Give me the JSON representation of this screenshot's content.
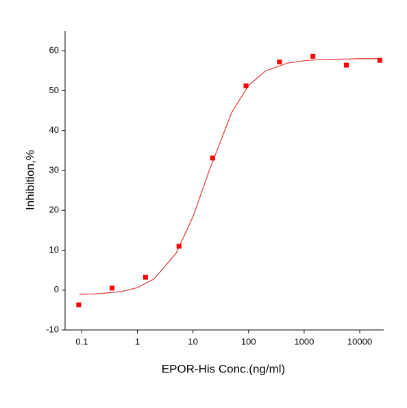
{
  "chart_data": {
    "type": "scatter",
    "x_label": "EPOR-His Conc.(ng/ml)",
    "y_label": "Inhibition,%",
    "xscale": "log",
    "xlim": [
      0.05,
      27000
    ],
    "ylim": [
      -10,
      65
    ],
    "xticks": [
      0.1,
      1,
      10,
      100,
      1000,
      10000
    ],
    "yticks": [
      -10,
      0,
      10,
      20,
      30,
      40,
      50,
      60
    ],
    "grid": false,
    "series": [
      {
        "name": "Data",
        "color": "#ff0000",
        "mode": "markers",
        "x": [
          0.088,
          0.35,
          1.4,
          5.6,
          22.5,
          89.8,
          359.4,
          1437.5,
          5750,
          23000
        ],
        "values": [
          -3.7,
          0.5,
          3.2,
          11,
          33.1,
          51.2,
          57.2,
          58.6,
          56.4,
          57.6
        ]
      },
      {
        "name": "Fit",
        "color": "#e03030",
        "mode": "line",
        "x": [
          0.09,
          0.2,
          0.5,
          1,
          2,
          5,
          10,
          20,
          50,
          100,
          200,
          500,
          1000,
          2000,
          5000,
          10000,
          23000
        ],
        "values": [
          -1.1,
          -0.9,
          -0.4,
          0.6,
          2.8,
          9.3,
          18.4,
          30.3,
          44.6,
          51.3,
          54.9,
          56.9,
          57.5,
          57.8,
          57.9,
          58.0,
          58.0
        ]
      }
    ]
  }
}
